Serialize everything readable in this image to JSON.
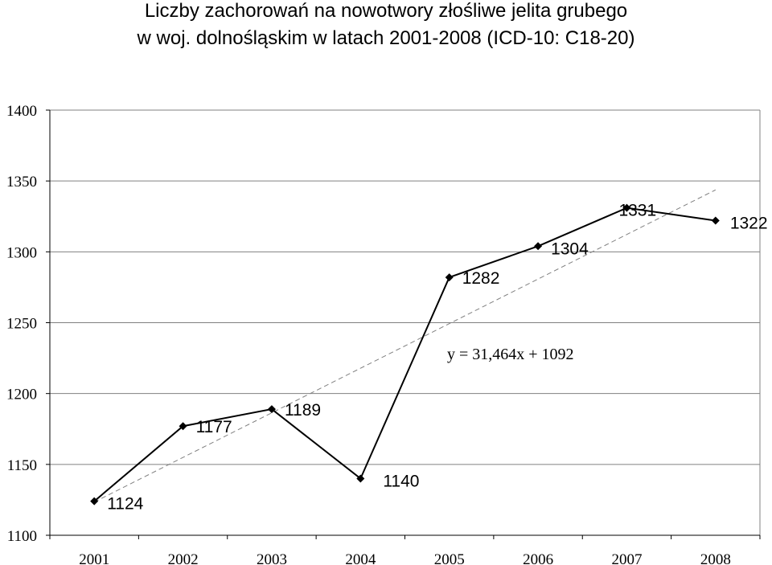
{
  "chart_data": {
    "type": "line",
    "title_lines": [
      "Liczby zachorowań na nowotwory złośliwe jelita grubego",
      "w woj. dolnośląskim w latach 2001-2008 (ICD-10: C18-20)"
    ],
    "categories": [
      "2001",
      "2002",
      "2003",
      "2004",
      "2005",
      "2006",
      "2007",
      "2008"
    ],
    "series": [
      {
        "values": [
          1124,
          1177,
          1189,
          1140,
          1282,
          1304,
          1331,
          1322
        ],
        "color": "#000000"
      }
    ],
    "data_labels": [
      "1124",
      "1177",
      "1189",
      "1140",
      "1282",
      "1304",
      "1331",
      "1322"
    ],
    "ylim": [
      1100,
      1400
    ],
    "y_ticks": [
      "1100",
      "1150",
      "1200",
      "1250",
      "1300",
      "1350",
      "1400"
    ],
    "y_tick_values": [
      1100,
      1150,
      1200,
      1250,
      1300,
      1350,
      1400
    ],
    "trendline": {
      "type": "linear",
      "slope": 31.464,
      "intercept": 1092,
      "color": "#808080",
      "style": "dashed"
    },
    "trend_equation": "y = 31,464x + 1092",
    "grid": {
      "horizontal": true,
      "vertical": false,
      "color": "#808080"
    },
    "legend": "none"
  }
}
